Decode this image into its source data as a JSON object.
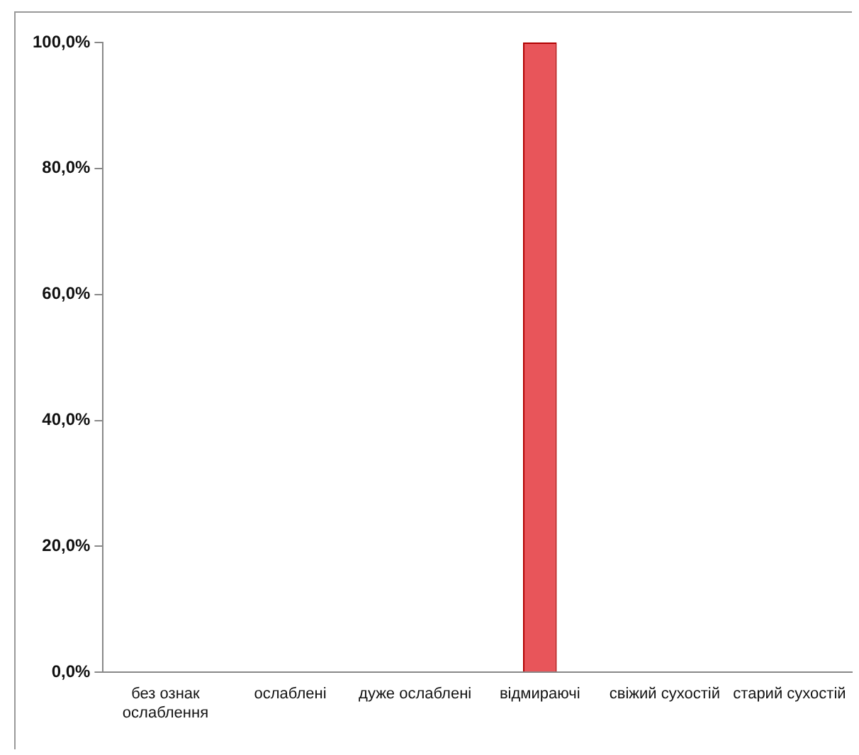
{
  "chart_data": {
    "type": "bar",
    "categories": [
      "без ознак ослаблення",
      "ослаблені",
      "дуже ослаблені",
      "відмираючі",
      "свіжий сухостій",
      "старий сухостій"
    ],
    "values": [
      0,
      0,
      0,
      100,
      0,
      0
    ],
    "color": "#e8555a",
    "ylim": [
      0,
      100
    ],
    "yticks": [
      {
        "value": 0,
        "label": "0,0%"
      },
      {
        "value": 20,
        "label": "20,0%"
      },
      {
        "value": 40,
        "label": "40,0%"
      },
      {
        "value": 60,
        "label": "60,0%"
      },
      {
        "value": 80,
        "label": "80,0%"
      },
      {
        "value": 100,
        "label": "100,0%"
      }
    ],
    "grid": false,
    "legend": false
  }
}
